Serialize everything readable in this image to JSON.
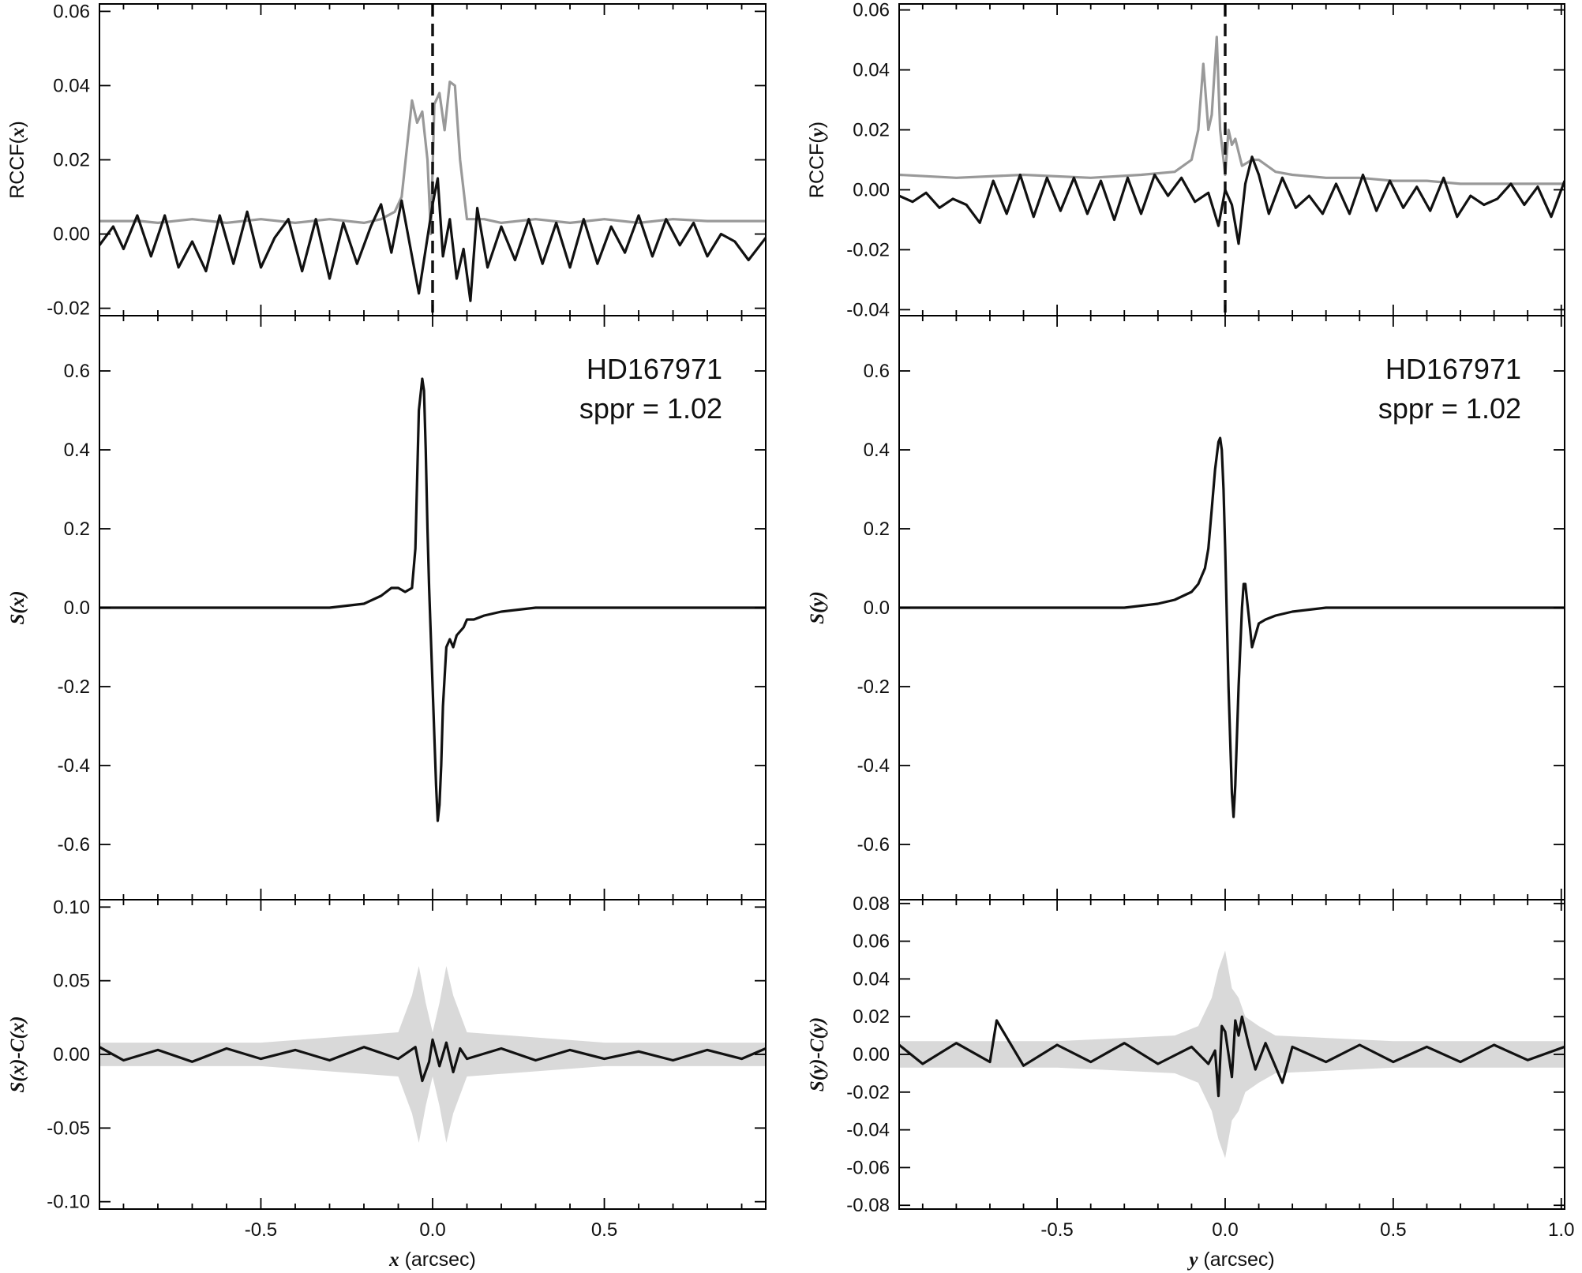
{
  "chart_data": [
    {
      "type": "line",
      "panel": "rccf-x",
      "ylabel_prefix": "RCCF(",
      "ylabel_var": "x",
      "ylabel_suffix": ")",
      "xlim": [
        -0.97,
        0.97
      ],
      "ylim": [
        -0.022,
        0.062
      ],
      "yticks": [
        -0.02,
        0.0,
        0.02,
        0.04,
        0.06
      ],
      "ytick_labels": [
        "-0.02",
        "0.00",
        "0.02",
        "0.04",
        "0.06"
      ],
      "vline": 0.0,
      "series": [
        {
          "color": "#999999",
          "x": [
            -0.97,
            -0.85,
            -0.8,
            -0.7,
            -0.6,
            -0.5,
            -0.4,
            -0.3,
            -0.2,
            -0.15,
            -0.11,
            -0.09,
            -0.06,
            -0.045,
            -0.03,
            -0.015,
            -0.005,
            0.005,
            0.02,
            0.035,
            0.05,
            0.065,
            0.08,
            0.1,
            0.15,
            0.2,
            0.3,
            0.4,
            0.5,
            0.6,
            0.7,
            0.8,
            0.97
          ],
          "y": [
            0.0035,
            0.0035,
            0.003,
            0.004,
            0.003,
            0.004,
            0.003,
            0.004,
            0.003,
            0.004,
            0.006,
            0.01,
            0.036,
            0.03,
            0.033,
            0.02,
            0.0,
            0.035,
            0.038,
            0.028,
            0.041,
            0.04,
            0.02,
            0.004,
            0.004,
            0.003,
            0.004,
            0.003,
            0.004,
            0.003,
            0.004,
            0.0035,
            0.0035
          ]
        },
        {
          "color": "#111111",
          "x": [
            -0.97,
            -0.93,
            -0.9,
            -0.86,
            -0.82,
            -0.78,
            -0.74,
            -0.7,
            -0.66,
            -0.62,
            -0.58,
            -0.54,
            -0.5,
            -0.46,
            -0.42,
            -0.38,
            -0.34,
            -0.3,
            -0.26,
            -0.22,
            -0.18,
            -0.15,
            -0.12,
            -0.09,
            -0.06,
            -0.04,
            -0.02,
            0.0,
            0.015,
            0.03,
            0.05,
            0.07,
            0.09,
            0.11,
            0.13,
            0.16,
            0.2,
            0.24,
            0.28,
            0.32,
            0.36,
            0.4,
            0.44,
            0.48,
            0.52,
            0.56,
            0.6,
            0.64,
            0.68,
            0.72,
            0.76,
            0.8,
            0.84,
            0.88,
            0.92,
            0.97
          ],
          "y": [
            -0.003,
            0.002,
            -0.004,
            0.005,
            -0.006,
            0.005,
            -0.009,
            -0.002,
            -0.01,
            0.005,
            -0.008,
            0.006,
            -0.009,
            -0.001,
            0.004,
            -0.01,
            0.004,
            -0.012,
            0.003,
            -0.008,
            0.002,
            0.008,
            -0.005,
            0.009,
            -0.006,
            -0.016,
            -0.004,
            0.008,
            0.015,
            -0.006,
            0.004,
            -0.012,
            -0.004,
            -0.018,
            0.007,
            -0.009,
            0.002,
            -0.007,
            0.004,
            -0.008,
            0.003,
            -0.009,
            0.004,
            -0.008,
            0.002,
            -0.005,
            0.005,
            -0.006,
            0.004,
            -0.003,
            0.003,
            -0.006,
            0.0,
            -0.002,
            -0.007,
            -0.001
          ]
        }
      ]
    },
    {
      "type": "line",
      "panel": "s-x",
      "ylabel": "S(x)",
      "xlim": [
        -0.97,
        0.97
      ],
      "ylim": [
        -0.74,
        0.74
      ],
      "yticks": [
        -0.6,
        -0.4,
        -0.2,
        0.0,
        0.2,
        0.4,
        0.6
      ],
      "ytick_labels": [
        "-0.6",
        "-0.4",
        "-0.2",
        "0.0",
        "0.2",
        "0.4",
        "0.6"
      ],
      "annotations": [
        "HD167971",
        "sppr = 1.02"
      ],
      "series": [
        {
          "color": "#111111",
          "x": [
            -0.97,
            -0.8,
            -0.6,
            -0.4,
            -0.3,
            -0.2,
            -0.15,
            -0.12,
            -0.1,
            -0.08,
            -0.06,
            -0.05,
            -0.04,
            -0.03,
            -0.025,
            -0.02,
            -0.015,
            -0.01,
            0.0,
            0.01,
            0.015,
            0.02,
            0.025,
            0.03,
            0.04,
            0.05,
            0.06,
            0.07,
            0.09,
            0.1,
            0.12,
            0.15,
            0.2,
            0.3,
            0.4,
            0.6,
            0.8,
            0.97
          ],
          "y": [
            0.0,
            0.0,
            0.0,
            0.0,
            0.0,
            0.01,
            0.03,
            0.05,
            0.05,
            0.04,
            0.05,
            0.15,
            0.5,
            0.58,
            0.55,
            0.4,
            0.2,
            0.05,
            -0.2,
            -0.45,
            -0.54,
            -0.5,
            -0.4,
            -0.25,
            -0.1,
            -0.08,
            -0.1,
            -0.07,
            -0.05,
            -0.03,
            -0.03,
            -0.02,
            -0.01,
            0.0,
            0.0,
            0.0,
            0.0,
            0.0
          ]
        }
      ]
    },
    {
      "type": "line",
      "panel": "resid-x",
      "ylabel": "S(x)-C(x)",
      "xlim": [
        -0.97,
        0.97
      ],
      "ylim": [
        -0.105,
        0.105
      ],
      "yticks": [
        -0.1,
        -0.05,
        0.0,
        0.05,
        0.1
      ],
      "ytick_labels": [
        "-0.10",
        "-0.05",
        "0.00",
        "0.05",
        "0.10"
      ],
      "band": {
        "color": "#d9d9d9",
        "x": [
          -0.97,
          -0.5,
          -0.1,
          -0.06,
          -0.04,
          -0.02,
          0.0,
          0.02,
          0.04,
          0.06,
          0.1,
          0.5,
          0.97
        ],
        "half_width": [
          0.008,
          0.008,
          0.015,
          0.04,
          0.06,
          0.035,
          0.015,
          0.035,
          0.06,
          0.04,
          0.015,
          0.008,
          0.008
        ]
      },
      "series": [
        {
          "color": "#111111",
          "x": [
            -0.97,
            -0.9,
            -0.8,
            -0.7,
            -0.6,
            -0.5,
            -0.4,
            -0.3,
            -0.2,
            -0.1,
            -0.05,
            -0.03,
            -0.01,
            0.0,
            0.02,
            0.04,
            0.06,
            0.08,
            0.1,
            0.2,
            0.3,
            0.4,
            0.5,
            0.6,
            0.7,
            0.8,
            0.9,
            0.97
          ],
          "y": [
            0.005,
            -0.004,
            0.003,
            -0.005,
            0.004,
            -0.003,
            0.003,
            -0.004,
            0.005,
            -0.003,
            0.005,
            -0.018,
            -0.005,
            0.01,
            -0.008,
            0.008,
            -0.012,
            0.004,
            -0.003,
            0.004,
            -0.004,
            0.003,
            -0.003,
            0.002,
            -0.004,
            0.003,
            -0.003,
            0.004
          ]
        }
      ],
      "xticks": [
        -0.5,
        0.0,
        0.5
      ],
      "xtick_labels": [
        "-0.5",
        "0.0",
        "0.5"
      ],
      "xlabel_var": "x",
      "xlabel_unit": " (arcsec)"
    },
    {
      "type": "line",
      "panel": "rccf-y",
      "ylabel_prefix": "RCCF(",
      "ylabel_var": "y",
      "ylabel_suffix": ")",
      "xlim": [
        -0.97,
        1.01
      ],
      "ylim": [
        -0.042,
        0.062
      ],
      "yticks": [
        -0.04,
        -0.02,
        0.0,
        0.02,
        0.04,
        0.06
      ],
      "ytick_labels": [
        "-0.04",
        "-0.02",
        "0.00",
        "0.02",
        "0.04",
        "0.06"
      ],
      "vline": 0.0,
      "series": [
        {
          "color": "#999999",
          "x": [
            -0.97,
            -0.8,
            -0.6,
            -0.4,
            -0.25,
            -0.15,
            -0.1,
            -0.08,
            -0.065,
            -0.05,
            -0.04,
            -0.025,
            -0.015,
            -0.005,
            0.0,
            0.01,
            0.02,
            0.03,
            0.05,
            0.08,
            0.1,
            0.15,
            0.2,
            0.3,
            0.4,
            0.5,
            0.6,
            0.7,
            0.8,
            1.01
          ],
          "y": [
            0.005,
            0.004,
            0.005,
            0.004,
            0.005,
            0.006,
            0.01,
            0.02,
            0.042,
            0.02,
            0.025,
            0.051,
            0.02,
            0.01,
            0.005,
            0.02,
            0.015,
            0.017,
            0.008,
            0.01,
            0.01,
            0.006,
            0.005,
            0.004,
            0.004,
            0.003,
            0.003,
            0.002,
            0.002,
            0.002
          ]
        },
        {
          "color": "#111111",
          "x": [
            -0.97,
            -0.93,
            -0.89,
            -0.85,
            -0.81,
            -0.77,
            -0.73,
            -0.69,
            -0.65,
            -0.61,
            -0.57,
            -0.53,
            -0.49,
            -0.45,
            -0.41,
            -0.37,
            -0.33,
            -0.29,
            -0.25,
            -0.21,
            -0.17,
            -0.13,
            -0.09,
            -0.05,
            -0.02,
            0.0,
            0.02,
            0.04,
            0.06,
            0.08,
            0.1,
            0.13,
            0.17,
            0.21,
            0.25,
            0.29,
            0.33,
            0.37,
            0.41,
            0.45,
            0.49,
            0.53,
            0.57,
            0.61,
            0.65,
            0.69,
            0.73,
            0.77,
            0.81,
            0.85,
            0.89,
            0.93,
            0.97,
            1.01
          ],
          "y": [
            -0.002,
            -0.004,
            -0.001,
            -0.006,
            -0.003,
            -0.005,
            -0.011,
            0.003,
            -0.008,
            0.005,
            -0.009,
            0.004,
            -0.007,
            0.004,
            -0.008,
            0.003,
            -0.01,
            0.004,
            -0.008,
            0.005,
            -0.002,
            0.004,
            -0.004,
            -0.001,
            -0.012,
            0.0,
            -0.005,
            -0.018,
            0.002,
            0.011,
            0.005,
            -0.008,
            0.004,
            -0.006,
            -0.002,
            -0.008,
            0.002,
            -0.008,
            0.005,
            -0.007,
            0.003,
            -0.006,
            0.001,
            -0.007,
            0.004,
            -0.009,
            -0.002,
            -0.005,
            -0.003,
            0.002,
            -0.005,
            0.001,
            -0.009,
            0.003
          ]
        }
      ]
    },
    {
      "type": "line",
      "panel": "s-y",
      "ylabel": "S(y)",
      "xlim": [
        -0.97,
        1.01
      ],
      "ylim": [
        -0.74,
        0.74
      ],
      "yticks": [
        -0.6,
        -0.4,
        -0.2,
        0.0,
        0.2,
        0.4,
        0.6
      ],
      "ytick_labels": [
        "-0.6",
        "-0.4",
        "-0.2",
        "0.0",
        "0.2",
        "0.4",
        "0.6"
      ],
      "annotations": [
        "HD167971",
        "sppr = 1.02"
      ],
      "series": [
        {
          "color": "#111111",
          "x": [
            -0.97,
            -0.8,
            -0.6,
            -0.4,
            -0.3,
            -0.2,
            -0.15,
            -0.1,
            -0.08,
            -0.06,
            -0.05,
            -0.04,
            -0.03,
            -0.02,
            -0.015,
            -0.01,
            -0.005,
            0.0,
            0.01,
            0.02,
            0.025,
            0.03,
            0.04,
            0.05,
            0.055,
            0.06,
            0.07,
            0.08,
            0.09,
            0.1,
            0.12,
            0.15,
            0.2,
            0.3,
            0.4,
            0.6,
            0.8,
            1.01
          ],
          "y": [
            0.0,
            0.0,
            0.0,
            0.0,
            0.0,
            0.01,
            0.02,
            0.04,
            0.06,
            0.1,
            0.15,
            0.25,
            0.35,
            0.42,
            0.43,
            0.4,
            0.3,
            0.15,
            -0.2,
            -0.47,
            -0.53,
            -0.45,
            -0.2,
            0.0,
            0.06,
            0.06,
            -0.02,
            -0.1,
            -0.07,
            -0.04,
            -0.03,
            -0.02,
            -0.01,
            0.0,
            0.0,
            0.0,
            0.0,
            0.0
          ]
        }
      ]
    },
    {
      "type": "line",
      "panel": "resid-y",
      "ylabel": "S(y)-C(y)",
      "xlim": [
        -0.97,
        1.01
      ],
      "ylim": [
        -0.082,
        0.082
      ],
      "yticks": [
        -0.08,
        -0.06,
        -0.04,
        -0.02,
        0.0,
        0.02,
        0.04,
        0.06,
        0.08
      ],
      "ytick_labels": [
        "-0.08",
        "-0.06",
        "-0.04",
        "-0.02",
        "0.00",
        "0.02",
        "0.04",
        "0.06",
        "0.08"
      ],
      "band": {
        "color": "#d9d9d9",
        "x": [
          -0.97,
          -0.5,
          -0.15,
          -0.08,
          -0.04,
          -0.02,
          0.0,
          0.02,
          0.04,
          0.06,
          0.1,
          0.15,
          0.5,
          1.01
        ],
        "half_width": [
          0.007,
          0.007,
          0.01,
          0.015,
          0.03,
          0.045,
          0.055,
          0.035,
          0.03,
          0.02,
          0.015,
          0.01,
          0.007,
          0.007
        ]
      },
      "series": [
        {
          "color": "#111111",
          "x": [
            -0.97,
            -0.9,
            -0.8,
            -0.7,
            -0.68,
            -0.6,
            -0.5,
            -0.4,
            -0.3,
            -0.2,
            -0.1,
            -0.05,
            -0.03,
            -0.02,
            -0.01,
            0.0,
            0.02,
            0.03,
            0.04,
            0.05,
            0.07,
            0.09,
            0.12,
            0.17,
            0.2,
            0.3,
            0.4,
            0.5,
            0.6,
            0.7,
            0.8,
            0.9,
            1.01
          ],
          "y": [
            0.005,
            -0.005,
            0.006,
            -0.004,
            0.018,
            -0.006,
            0.005,
            -0.004,
            0.006,
            -0.005,
            0.004,
            -0.005,
            0.002,
            -0.022,
            0.015,
            0.012,
            -0.012,
            0.018,
            0.01,
            0.02,
            0.005,
            -0.008,
            0.006,
            -0.015,
            0.004,
            -0.004,
            0.005,
            -0.004,
            0.004,
            -0.004,
            0.005,
            -0.003,
            0.004
          ]
        }
      ],
      "xticks": [
        -0.5,
        0.0,
        0.5,
        1.0
      ],
      "xtick_labels": [
        "-0.5",
        "0.0",
        "0.5",
        "1.0"
      ],
      "xlabel_var": "y",
      "xlabel_unit": " (arcsec)"
    }
  ]
}
